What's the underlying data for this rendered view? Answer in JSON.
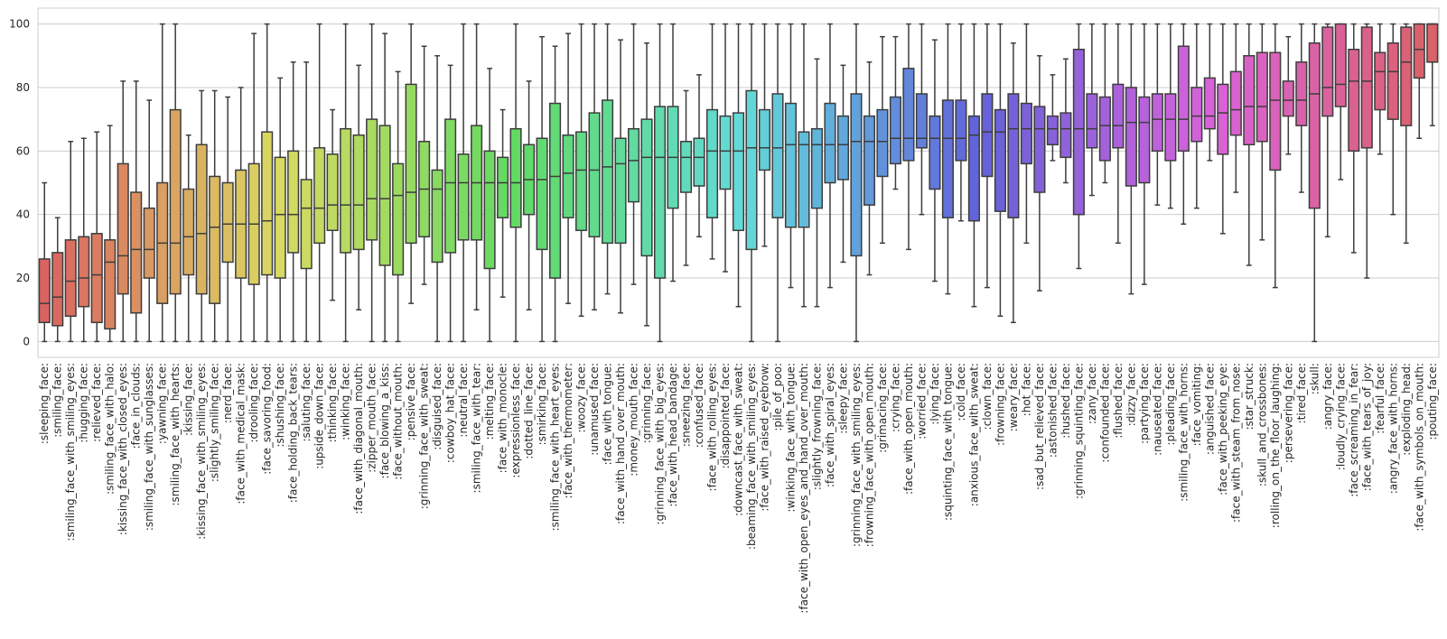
{
  "chart_data": {
    "type": "box",
    "title": "",
    "xlabel": "",
    "ylabel": "",
    "ylim": [
      -5,
      105
    ],
    "yticks": [
      0,
      20,
      40,
      60,
      80,
      100
    ],
    "grid": "horizontal",
    "categories": [
      ":sleeping_face:",
      ":smiling_face:",
      ":smiling_face_with_smiling_eyes:",
      ":hugging_face:",
      ":relieved_face:",
      ":smiling_face_with_halo:",
      ":kissing_face_with_closed_eyes:",
      ":face_in_clouds:",
      ":smiling_face_with_sunglasses:",
      ":yawning_face:",
      ":smiling_face_with_hearts:",
      ":kissing_face:",
      ":kissing_face_with_smiling_eyes:",
      ":slightly_smiling_face:",
      ":nerd_face:",
      ":face_with_medical_mask:",
      ":drooling_face:",
      ":face_savoring_food:",
      ":shushing_face:",
      ":face_holding_back_tears:",
      ":saluting_face:",
      ":upside_down_face:",
      ":thinking_face:",
      ":winking_face:",
      ":face_with_diagonal_mouth:",
      ":zipper_mouth_face:",
      ":face_blowing_a_kiss:",
      ":face_without_mouth:",
      ":pensive_face:",
      ":grinning_face_with_sweat:",
      ":disguised_face:",
      ":cowboy_hat_face:",
      ":neutral_face:",
      ":smiling_face_with_tear:",
      ":melting_face:",
      ":face_with_monocle:",
      ":expressionless_face:",
      ":dotted_line_face:",
      ":smirking_face:",
      ":smiling_face_with_heart_eyes:",
      ":face_with_thermometer:",
      ":woozy_face:",
      ":unamused_face:",
      ":face_with_tongue:",
      ":face_with_hand_over_mouth:",
      ":money_mouth_face:",
      ":grinning_face:",
      ":grinning_face_with_big_eyes:",
      ":face_with_head_bandage:",
      ":sneezing_face:",
      ":confused_face:",
      ":face_with_rolling_eyes:",
      ":disappointed_face:",
      ":downcast_face_with_sweat:",
      ":beaming_face_with_smiling_eyes:",
      ":face_with_raised_eyebrow:",
      ":pile_of_poo:",
      ":winking_face_with_tongue:",
      ":face_with_open_eyes_and_hand_over_mouth:",
      ":slightly_frowning_face:",
      ":face_with_spiral_eyes:",
      ":sleepy_face:",
      ":grinning_face_with_smiling_eyes:",
      ":frowning_face_with_open_mouth:",
      ":grimacing_face:",
      ":crying_face:",
      ":face_with_open_mouth:",
      ":worried_face:",
      ":lying_face:",
      ":squinting_face_with_tongue:",
      ":cold_face:",
      ":anxious_face_with_sweat:",
      ":clown_face:",
      ":frowning_face:",
      ":weary_face:",
      ":hot_face:",
      ":sad_but_relieved_face:",
      ":astonished_face:",
      ":hushed_face:",
      ":grinning_squinting_face:",
      ":zany_face:",
      ":confounded_face:",
      ":flushed_face:",
      ":dizzy_face:",
      ":partying_face:",
      ":nauseated_face:",
      ":pleading_face:",
      ":smiling_face_with_horns:",
      ":face_vomiting:",
      ":anguished_face:",
      ":face_with_peeking_eye:",
      ":face_with_steam_from_nose:",
      ":star_struck:",
      ":skull_and_crossbones:",
      ":rolling_on_the_floor_laughing:",
      ":persevering_face:",
      ":tired_face:",
      ":skull:",
      ":angry_face:",
      ":loudly_crying_face:",
      ":face_screaming_in_fear:",
      ":face_with_tears_of_joy:",
      ":fearful_face:",
      ":angry_face_with_horns:",
      ":exploding_head:",
      ":face_with_symbols_on_mouth:",
      ":pouting_face:"
    ],
    "boxes": [
      [
        0,
        6,
        12,
        26,
        50
      ],
      [
        0,
        5,
        14,
        28,
        39
      ],
      [
        0,
        8,
        19,
        32,
        63
      ],
      [
        0,
        11,
        20,
        33,
        64
      ],
      [
        0,
        6,
        21,
        34,
        66
      ],
      [
        0,
        4,
        25,
        32,
        68
      ],
      [
        0,
        15,
        27,
        56,
        82
      ],
      [
        0,
        9,
        29,
        47,
        82
      ],
      [
        0,
        20,
        29,
        42,
        76
      ],
      [
        0,
        12,
        31,
        50,
        100
      ],
      [
        0,
        15,
        31,
        73,
        100
      ],
      [
        0,
        21,
        33,
        48,
        65
      ],
      [
        0,
        15,
        34,
        62,
        79
      ],
      [
        0,
        12,
        36,
        52,
        79
      ],
      [
        0,
        25,
        37,
        50,
        77
      ],
      [
        0,
        20,
        37,
        54,
        80
      ],
      [
        0,
        18,
        37,
        56,
        97
      ],
      [
        0,
        21,
        38,
        66,
        100
      ],
      [
        0,
        20,
        40,
        58,
        83
      ],
      [
        0,
        28,
        40,
        60,
        88
      ],
      [
        0,
        23,
        42,
        51,
        88
      ],
      [
        0,
        31,
        42,
        61,
        100
      ],
      [
        13,
        35,
        43,
        59,
        73
      ],
      [
        0,
        28,
        43,
        67,
        100
      ],
      [
        10,
        29,
        43,
        65,
        87
      ],
      [
        0,
        32,
        45,
        70,
        100
      ],
      [
        0,
        24,
        45,
        68,
        97
      ],
      [
        0,
        21,
        46,
        56,
        85
      ],
      [
        12,
        31,
        47,
        81,
        100
      ],
      [
        18,
        33,
        48,
        63,
        93
      ],
      [
        0,
        25,
        48,
        54,
        90
      ],
      [
        0,
        28,
        50,
        70,
        87
      ],
      [
        0,
        32,
        50,
        59,
        100
      ],
      [
        10,
        32,
        50,
        68,
        100
      ],
      [
        0,
        23,
        50,
        60,
        86
      ],
      [
        14,
        39,
        50,
        58,
        73
      ],
      [
        0,
        36,
        50,
        67,
        100
      ],
      [
        10,
        40,
        51,
        62,
        82
      ],
      [
        0,
        29,
        51,
        64,
        96
      ],
      [
        0,
        20,
        52,
        75,
        93
      ],
      [
        12,
        39,
        53,
        65,
        97
      ],
      [
        8,
        35,
        54,
        66,
        100
      ],
      [
        10,
        33,
        54,
        72,
        100
      ],
      [
        15,
        31,
        55,
        76,
        100
      ],
      [
        9,
        31,
        56,
        64,
        95
      ],
      [
        18,
        44,
        57,
        67,
        100
      ],
      [
        5,
        27,
        58,
        70,
        94
      ],
      [
        0,
        20,
        58,
        74,
        100
      ],
      [
        19,
        42,
        58,
        74,
        100
      ],
      [
        24,
        47,
        58,
        63,
        79
      ],
      [
        33,
        49,
        58,
        64,
        84
      ],
      [
        26,
        39,
        60,
        73,
        100
      ],
      [
        22,
        48,
        60,
        71,
        100
      ],
      [
        11,
        35,
        60,
        72,
        100
      ],
      [
        0,
        29,
        61,
        79,
        100
      ],
      [
        30,
        54,
        61,
        73,
        100
      ],
      [
        0,
        39,
        61,
        78,
        100
      ],
      [
        17,
        36,
        62,
        75,
        100
      ],
      [
        11,
        36,
        62,
        66,
        100
      ],
      [
        11,
        42,
        62,
        67,
        89
      ],
      [
        17,
        50,
        62,
        75,
        100
      ],
      [
        25,
        51,
        62,
        71,
        87
      ],
      [
        0,
        27,
        63,
        78,
        100
      ],
      [
        21,
        43,
        63,
        71,
        88
      ],
      [
        31,
        52,
        63,
        73,
        96
      ],
      [
        48,
        56,
        64,
        77,
        96
      ],
      [
        29,
        57,
        64,
        86,
        100
      ],
      [
        40,
        61,
        64,
        78,
        100
      ],
      [
        19,
        48,
        64,
        71,
        95
      ],
      [
        15,
        39,
        64,
        76,
        100
      ],
      [
        38,
        57,
        64,
        76,
        100
      ],
      [
        11,
        38,
        65,
        71,
        100
      ],
      [
        17,
        52,
        66,
        78,
        100
      ],
      [
        8,
        41,
        66,
        73,
        100
      ],
      [
        6,
        39,
        67,
        78,
        94
      ],
      [
        31,
        56,
        67,
        75,
        100
      ],
      [
        16,
        47,
        67,
        74,
        90
      ],
      [
        57,
        62,
        67,
        71,
        84
      ],
      [
        50,
        58,
        67,
        72,
        89
      ],
      [
        23,
        40,
        67,
        92,
        100
      ],
      [
        46,
        61,
        67,
        78,
        100
      ],
      [
        50,
        57,
        68,
        77,
        100
      ],
      [
        31,
        61,
        68,
        81,
        100
      ],
      [
        15,
        49,
        69,
        80,
        100
      ],
      [
        18,
        50,
        69,
        77,
        100
      ],
      [
        43,
        60,
        70,
        78,
        100
      ],
      [
        42,
        57,
        70,
        78,
        100
      ],
      [
        37,
        60,
        70,
        93,
        100
      ],
      [
        42,
        63,
        71,
        80,
        100
      ],
      [
        57,
        67,
        71,
        83,
        100
      ],
      [
        34,
        59,
        72,
        81,
        100
      ],
      [
        47,
        65,
        73,
        85,
        100
      ],
      [
        24,
        62,
        74,
        90,
        100
      ],
      [
        32,
        63,
        74,
        91,
        100
      ],
      [
        17,
        54,
        76,
        91,
        100
      ],
      [
        59,
        71,
        76,
        82,
        96
      ],
      [
        47,
        68,
        76,
        88,
        100
      ],
      [
        0,
        42,
        78,
        94,
        100
      ],
      [
        33,
        71,
        80,
        99,
        100
      ],
      [
        51,
        74,
        81,
        100,
        100
      ],
      [
        28,
        60,
        82,
        92,
        100
      ],
      [
        20,
        61,
        82,
        99,
        100
      ],
      [
        59,
        73,
        85,
        91,
        100
      ],
      [
        40,
        70,
        85,
        94,
        100
      ],
      [
        31,
        68,
        88,
        99,
        100
      ],
      [
        64,
        83,
        92,
        100,
        100
      ],
      [
        68,
        88,
        100,
        100,
        100
      ]
    ]
  }
}
